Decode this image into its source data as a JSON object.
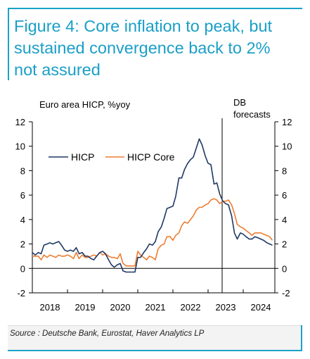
{
  "figure": {
    "title_lines": [
      "Figure 4: Core inflation to peak, but",
      "sustained convergence back to 2%",
      "not assured"
    ],
    "source": "Source : Deutsche Bank, Eurostat, Haver Analytics LP"
  },
  "colors": {
    "accent": "#1a9fc7",
    "hicp": "#1f3864",
    "hicp_core": "#ed7d31"
  },
  "chart_data": {
    "type": "line",
    "title": "Euro area HICP, %yoy",
    "xlabel": "",
    "ylabel": "",
    "ylim": [
      -2,
      12
    ],
    "yticks": [
      "-2",
      "0",
      "2",
      "4",
      "6",
      "8",
      "10",
      "12"
    ],
    "xlim": [
      2018.0,
      2024.9
    ],
    "xticks": [
      "2018",
      "2019",
      "2020",
      "2021",
      "2022",
      "2023",
      "2024"
    ],
    "grid": false,
    "legend": "upper-left",
    "annotation": {
      "label_lines": [
        "DB",
        "forecasts"
      ],
      "x": 2023.4
    },
    "series": [
      {
        "name": "HICP",
        "color": "#1f3864",
        "x": [
          2018.0,
          2018.08,
          2018.17,
          2018.25,
          2018.33,
          2018.42,
          2018.5,
          2018.58,
          2018.67,
          2018.75,
          2018.83,
          2018.92,
          2019.0,
          2019.08,
          2019.17,
          2019.25,
          2019.33,
          2019.42,
          2019.5,
          2019.58,
          2019.67,
          2019.75,
          2019.83,
          2019.92,
          2020.0,
          2020.08,
          2020.17,
          2020.25,
          2020.33,
          2020.42,
          2020.5,
          2020.58,
          2020.67,
          2020.75,
          2020.83,
          2020.92,
          2021.0,
          2021.08,
          2021.17,
          2021.25,
          2021.33,
          2021.42,
          2021.5,
          2021.58,
          2021.67,
          2021.75,
          2021.83,
          2021.92,
          2022.0,
          2022.08,
          2022.17,
          2022.25,
          2022.33,
          2022.42,
          2022.5,
          2022.58,
          2022.67,
          2022.75,
          2022.83,
          2022.92,
          2023.0,
          2023.08,
          2023.17,
          2023.25,
          2023.33,
          2023.42,
          2023.5,
          2023.58,
          2023.67,
          2023.75,
          2023.83,
          2023.92,
          2024.0,
          2024.08,
          2024.17,
          2024.25,
          2024.33,
          2024.42,
          2024.5,
          2024.58,
          2024.67,
          2024.75,
          2024.83
        ],
        "values": [
          1.3,
          1.1,
          1.3,
          1.2,
          1.9,
          2.0,
          2.1,
          2.0,
          2.1,
          2.2,
          1.9,
          1.5,
          1.4,
          1.5,
          1.4,
          1.7,
          1.2,
          1.3,
          1.0,
          1.0,
          0.8,
          0.7,
          1.0,
          1.3,
          1.4,
          1.2,
          0.7,
          0.3,
          0.1,
          0.3,
          0.4,
          -0.2,
          -0.3,
          -0.3,
          -0.3,
          -0.3,
          0.9,
          0.9,
          1.3,
          1.6,
          2.0,
          1.9,
          2.2,
          3.0,
          3.4,
          4.1,
          4.9,
          5.0,
          5.1,
          5.9,
          7.4,
          7.4,
          8.1,
          8.6,
          8.9,
          9.1,
          9.9,
          10.6,
          10.1,
          9.2,
          8.6,
          8.5,
          6.9,
          7.0,
          6.1,
          5.5,
          5.3,
          5.2,
          4.3,
          2.9,
          2.4,
          2.9,
          2.8,
          2.6,
          2.4,
          2.4,
          2.6,
          2.5,
          2.4,
          2.3,
          2.1,
          2.0,
          1.9
        ]
      },
      {
        "name": "HICP Core",
        "color": "#ed7d31",
        "x": [
          2018.0,
          2018.08,
          2018.17,
          2018.25,
          2018.33,
          2018.42,
          2018.5,
          2018.58,
          2018.67,
          2018.75,
          2018.83,
          2018.92,
          2019.0,
          2019.08,
          2019.17,
          2019.25,
          2019.33,
          2019.42,
          2019.5,
          2019.58,
          2019.67,
          2019.75,
          2019.83,
          2019.92,
          2020.0,
          2020.08,
          2020.17,
          2020.25,
          2020.33,
          2020.42,
          2020.5,
          2020.58,
          2020.67,
          2020.75,
          2020.83,
          2020.92,
          2021.0,
          2021.08,
          2021.17,
          2021.25,
          2021.33,
          2021.42,
          2021.5,
          2021.58,
          2021.67,
          2021.75,
          2021.83,
          2021.92,
          2022.0,
          2022.08,
          2022.17,
          2022.25,
          2022.33,
          2022.42,
          2022.5,
          2022.58,
          2022.67,
          2022.75,
          2022.83,
          2022.92,
          2023.0,
          2023.08,
          2023.17,
          2023.25,
          2023.33,
          2023.42,
          2023.5,
          2023.58,
          2023.67,
          2023.75,
          2023.83,
          2023.92,
          2024.0,
          2024.08,
          2024.17,
          2024.25,
          2024.33,
          2024.42,
          2024.5,
          2024.58,
          2024.67,
          2024.75,
          2024.83
        ],
        "values": [
          1.0,
          1.0,
          1.0,
          0.7,
          1.1,
          0.9,
          1.1,
          1.0,
          0.9,
          1.1,
          1.0,
          1.0,
          1.1,
          1.0,
          0.8,
          1.3,
          0.8,
          1.1,
          0.9,
          0.9,
          1.0,
          1.1,
          1.0,
          1.3,
          1.1,
          1.2,
          1.0,
          0.9,
          0.9,
          0.8,
          1.2,
          0.4,
          0.2,
          0.2,
          0.2,
          0.2,
          1.4,
          1.1,
          0.9,
          0.7,
          1.0,
          0.9,
          0.7,
          1.6,
          1.9,
          2.0,
          2.6,
          2.6,
          2.3,
          2.7,
          2.9,
          3.5,
          3.8,
          3.7,
          4.0,
          4.3,
          4.8,
          5.0,
          5.0,
          5.2,
          5.3,
          5.6,
          5.7,
          5.6,
          5.3,
          5.5,
          5.5,
          5.6,
          5.2,
          4.5,
          3.6,
          3.4,
          3.3,
          3.1,
          2.9,
          2.7,
          2.9,
          2.9,
          2.9,
          2.8,
          2.7,
          2.6,
          2.3
        ]
      }
    ]
  }
}
